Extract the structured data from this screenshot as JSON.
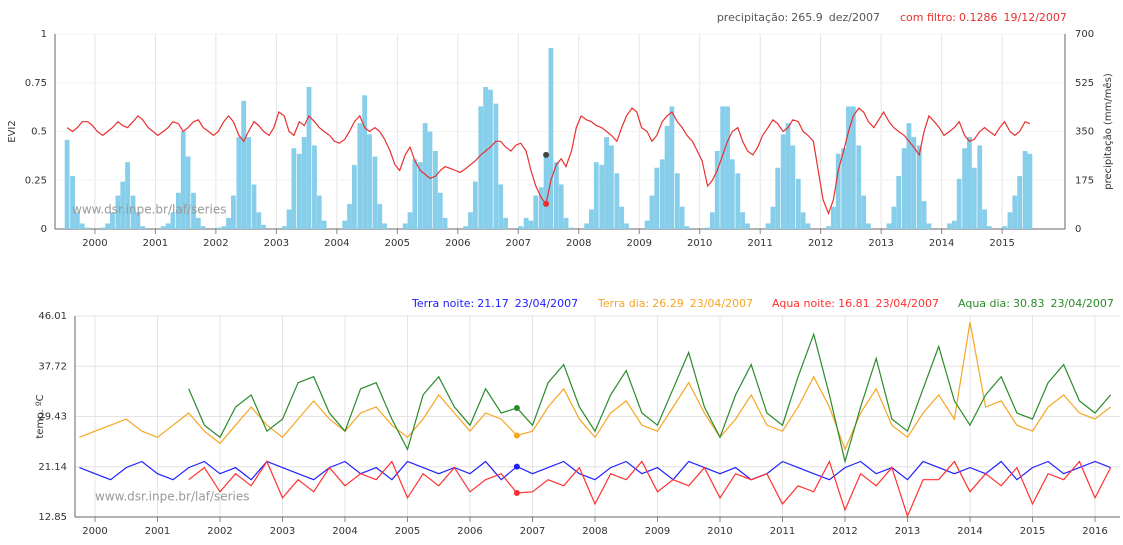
{
  "chart_data": [
    {
      "type": "combo",
      "ylabel": "EVI2",
      "y2label": "precipitação (mm/mês)",
      "watermark": "www.dsr.inpe.br/laf/series",
      "xlim": [
        1999.84,
        2016.54
      ],
      "ylim": [
        0,
        1
      ],
      "yticks": [
        0,
        0.25,
        0.5,
        0.75,
        1
      ],
      "y2lim": [
        0,
        700
      ],
      "y2ticks": [
        0,
        175,
        350,
        525,
        700
      ],
      "xticks": [
        {
          "value": 2000.5,
          "label": "2000"
        },
        {
          "value": 2001.5,
          "label": "2001"
        },
        {
          "value": 2002.5,
          "label": "2002"
        },
        {
          "value": 2003.5,
          "label": "2003"
        },
        {
          "value": 2004.5,
          "label": "2004"
        },
        {
          "value": 2005.5,
          "label": "2005"
        },
        {
          "value": 2006.5,
          "label": "2006"
        },
        {
          "value": 2007.5,
          "label": "2007"
        },
        {
          "value": 2008.5,
          "label": "2008"
        },
        {
          "value": 2009.5,
          "label": "2009"
        },
        {
          "value": 2010.5,
          "label": "2010"
        },
        {
          "value": 2011.5,
          "label": "2011"
        },
        {
          "value": 2012.5,
          "label": "2012"
        },
        {
          "value": 2013.5,
          "label": "2013"
        },
        {
          "value": 2014.5,
          "label": "2014"
        },
        {
          "value": 2015.5,
          "label": "2015"
        }
      ],
      "x": [
        2000.04,
        2000.13,
        2000.21,
        2000.29,
        2000.38,
        2000.46,
        2000.54,
        2000.63,
        2000.71,
        2000.79,
        2000.88,
        2000.96,
        2001.04,
        2001.13,
        2001.21,
        2001.29,
        2001.38,
        2001.46,
        2001.54,
        2001.63,
        2001.71,
        2001.79,
        2001.88,
        2001.96,
        2002.04,
        2002.13,
        2002.21,
        2002.29,
        2002.38,
        2002.46,
        2002.54,
        2002.63,
        2002.71,
        2002.79,
        2002.88,
        2002.96,
        2003.04,
        2003.13,
        2003.21,
        2003.29,
        2003.38,
        2003.46,
        2003.54,
        2003.63,
        2003.71,
        2003.79,
        2003.88,
        2003.96,
        2004.04,
        2004.13,
        2004.21,
        2004.29,
        2004.38,
        2004.46,
        2004.54,
        2004.63,
        2004.71,
        2004.79,
        2004.88,
        2004.96,
        2005.04,
        2005.13,
        2005.21,
        2005.29,
        2005.38,
        2005.46,
        2005.54,
        2005.63,
        2005.71,
        2005.79,
        2005.88,
        2005.96,
        2006.04,
        2006.13,
        2006.21,
        2006.29,
        2006.38,
        2006.46,
        2006.54,
        2006.63,
        2006.71,
        2006.79,
        2006.88,
        2006.96,
        2007.04,
        2007.13,
        2007.21,
        2007.29,
        2007.38,
        2007.46,
        2007.54,
        2007.63,
        2007.71,
        2007.79,
        2007.88,
        2007.96,
        2008.04,
        2008.13,
        2008.21,
        2008.29,
        2008.38,
        2008.46,
        2008.54,
        2008.63,
        2008.71,
        2008.79,
        2008.88,
        2008.96,
        2009.04,
        2009.13,
        2009.21,
        2009.29,
        2009.38,
        2009.46,
        2009.54,
        2009.63,
        2009.71,
        2009.79,
        2009.88,
        2009.96,
        2010.04,
        2010.13,
        2010.21,
        2010.29,
        2010.38,
        2010.46,
        2010.54,
        2010.63,
        2010.71,
        2010.79,
        2010.88,
        2010.96,
        2011.04,
        2011.13,
        2011.21,
        2011.29,
        2011.38,
        2011.46,
        2011.54,
        2011.63,
        2011.71,
        2011.79,
        2011.88,
        2011.96,
        2012.04,
        2012.13,
        2012.21,
        2012.29,
        2012.38,
        2012.46,
        2012.54,
        2012.63,
        2012.71,
        2012.79,
        2012.88,
        2012.96,
        2013.04,
        2013.13,
        2013.21,
        2013.29,
        2013.38,
        2013.46,
        2013.54,
        2013.63,
        2013.71,
        2013.79,
        2013.88,
        2013.96,
        2014.04,
        2014.13,
        2014.21,
        2014.29,
        2014.38,
        2014.46,
        2014.54,
        2014.63,
        2014.71,
        2014.79,
        2014.88,
        2014.96,
        2015.04,
        2015.13,
        2015.21,
        2015.29,
        2015.38,
        2015.46,
        2015.54,
        2015.63,
        2015.71,
        2015.79,
        2015.88,
        2015.96
      ],
      "series": [
        {
          "type": "bar",
          "axis": "y2",
          "color": "#87ceeb",
          "values": [
            320,
            190,
            60,
            20,
            5,
            0,
            0,
            5,
            20,
            60,
            120,
            170,
            240,
            120,
            60,
            10,
            0,
            0,
            0,
            10,
            20,
            60,
            130,
            350,
            260,
            130,
            40,
            10,
            0,
            0,
            5,
            10,
            40,
            120,
            330,
            460,
            330,
            160,
            60,
            15,
            0,
            0,
            0,
            10,
            70,
            290,
            270,
            330,
            510,
            300,
            120,
            30,
            0,
            0,
            0,
            30,
            90,
            230,
            380,
            480,
            340,
            260,
            90,
            20,
            0,
            0,
            0,
            20,
            60,
            250,
            240,
            380,
            350,
            280,
            130,
            40,
            0,
            0,
            0,
            10,
            60,
            170,
            440,
            510,
            500,
            450,
            160,
            40,
            0,
            0,
            10,
            40,
            30,
            120,
            150,
            265.9,
            650,
            240,
            160,
            40,
            5,
            0,
            0,
            20,
            70,
            240,
            230,
            330,
            300,
            200,
            80,
            20,
            0,
            0,
            0,
            30,
            120,
            220,
            250,
            370,
            440,
            200,
            80,
            10,
            0,
            0,
            0,
            5,
            60,
            280,
            440,
            440,
            250,
            200,
            60,
            20,
            0,
            0,
            0,
            20,
            80,
            220,
            340,
            380,
            300,
            180,
            60,
            20,
            0,
            0,
            0,
            10,
            80,
            270,
            290,
            440,
            440,
            300,
            120,
            20,
            0,
            0,
            0,
            20,
            80,
            190,
            290,
            380,
            330,
            300,
            100,
            20,
            0,
            0,
            0,
            20,
            30,
            180,
            290,
            330,
            220,
            300,
            70,
            10,
            0,
            0,
            10,
            60,
            120,
            190,
            280,
            270
          ]
        },
        {
          "type": "line",
          "axis": "y",
          "color": "#e83030",
          "values": [
            0.52,
            0.5,
            0.52,
            0.55,
            0.55,
            0.53,
            0.5,
            0.48,
            0.5,
            0.52,
            0.55,
            0.53,
            0.52,
            0.55,
            0.58,
            0.56,
            0.52,
            0.5,
            0.48,
            0.5,
            0.52,
            0.55,
            0.54,
            0.5,
            0.52,
            0.55,
            0.56,
            0.52,
            0.5,
            0.48,
            0.5,
            0.55,
            0.58,
            0.55,
            0.48,
            0.45,
            0.5,
            0.55,
            0.53,
            0.5,
            0.48,
            0.52,
            0.6,
            0.58,
            0.5,
            0.48,
            0.55,
            0.53,
            0.58,
            0.55,
            0.52,
            0.5,
            0.48,
            0.45,
            0.44,
            0.46,
            0.5,
            0.55,
            0.58,
            0.52,
            0.5,
            0.52,
            0.5,
            0.46,
            0.4,
            0.33,
            0.3,
            0.38,
            0.42,
            0.35,
            0.3,
            0.28,
            0.26,
            0.27,
            0.3,
            0.32,
            0.31,
            0.3,
            0.29,
            0.31,
            0.33,
            0.35,
            0.38,
            0.4,
            0.42,
            0.45,
            0.45,
            0.42,
            0.4,
            0.43,
            0.44,
            0.4,
            0.3,
            0.22,
            0.16,
            0.1286,
            0.25,
            0.33,
            0.36,
            0.32,
            0.4,
            0.52,
            0.58,
            0.56,
            0.55,
            0.53,
            0.52,
            0.5,
            0.48,
            0.45,
            0.52,
            0.58,
            0.62,
            0.6,
            0.52,
            0.5,
            0.45,
            0.48,
            0.55,
            0.58,
            0.6,
            0.55,
            0.52,
            0.48,
            0.45,
            0.4,
            0.35,
            0.22,
            0.25,
            0.3,
            0.38,
            0.45,
            0.5,
            0.52,
            0.45,
            0.4,
            0.38,
            0.42,
            0.48,
            0.52,
            0.56,
            0.54,
            0.5,
            0.52,
            0.56,
            0.55,
            0.5,
            0.48,
            0.45,
            0.3,
            0.15,
            0.08,
            0.15,
            0.3,
            0.4,
            0.5,
            0.58,
            0.62,
            0.6,
            0.55,
            0.52,
            0.56,
            0.6,
            0.55,
            0.52,
            0.5,
            0.48,
            0.45,
            0.42,
            0.38,
            0.5,
            0.58,
            0.55,
            0.52,
            0.48,
            0.5,
            0.52,
            0.55,
            0.48,
            0.45,
            0.46,
            0.5,
            0.52,
            0.5,
            0.48,
            0.52,
            0.55,
            0.5,
            0.48,
            0.5,
            0.55,
            0.54
          ]
        }
      ],
      "readouts": [
        {
          "label": "precipitação:",
          "value": 265.9,
          "date": "dez/2007",
          "color": "#555555"
        },
        {
          "label": "com filtro:",
          "value": 0.1286,
          "date": "19/12/2007",
          "color": "#e83030"
        }
      ]
    },
    {
      "type": "line",
      "ylabel": "temp. ºC",
      "watermark": "www.dsr.inpe.br/laf/series",
      "xlim": [
        2000.18,
        2016.9
      ],
      "ylim": [
        12.85,
        46.01
      ],
      "yticks": [
        12.85,
        21.14,
        29.43,
        37.72,
        46.01
      ],
      "xticks": [
        {
          "value": 2000.5,
          "label": "2000"
        },
        {
          "value": 2001.5,
          "label": "2001"
        },
        {
          "value": 2002.5,
          "label": "2002"
        },
        {
          "value": 2003.5,
          "label": "2003"
        },
        {
          "value": 2004.5,
          "label": "2004"
        },
        {
          "value": 2005.5,
          "label": "2005"
        },
        {
          "value": 2006.5,
          "label": "2006"
        },
        {
          "value": 2007.5,
          "label": "2007"
        },
        {
          "value": 2008.5,
          "label": "2008"
        },
        {
          "value": 2009.5,
          "label": "2009"
        },
        {
          "value": 2010.5,
          "label": "2010"
        },
        {
          "value": 2011.5,
          "label": "2011"
        },
        {
          "value": 2012.5,
          "label": "2012"
        },
        {
          "value": 2013.5,
          "label": "2013"
        },
        {
          "value": 2014.5,
          "label": "2014"
        },
        {
          "value": 2015.5,
          "label": "2015"
        },
        {
          "value": 2016.5,
          "label": "2016"
        }
      ],
      "x": [
        2000.25,
        2000.5,
        2000.75,
        2001,
        2001.25,
        2001.5,
        2001.75,
        2002,
        2002.25,
        2002.5,
        2002.75,
        2003,
        2003.25,
        2003.5,
        2003.75,
        2004,
        2004.25,
        2004.5,
        2004.75,
        2005,
        2005.25,
        2005.5,
        2005.75,
        2006,
        2006.25,
        2006.5,
        2006.75,
        2007,
        2007.25,
        2007.5,
        2007.75,
        2008,
        2008.25,
        2008.5,
        2008.75,
        2009,
        2009.25,
        2009.5,
        2009.75,
        2010,
        2010.25,
        2010.5,
        2010.75,
        2011,
        2011.25,
        2011.5,
        2011.75,
        2012,
        2012.25,
        2012.5,
        2012.75,
        2013,
        2013.25,
        2013.5,
        2013.75,
        2014,
        2014.25,
        2014.5,
        2014.75,
        2015,
        2015.25,
        2015.5,
        2015.75,
        2016,
        2016.25,
        2016.5,
        2016.75
      ],
      "series": [
        {
          "color": "#2020ff",
          "values": [
            21,
            20,
            19,
            21,
            22,
            20,
            19,
            21,
            22,
            20,
            21,
            19,
            22,
            21,
            20,
            19,
            21,
            22,
            20,
            21,
            19,
            22,
            21,
            20,
            21,
            20,
            22,
            19,
            21.17,
            20,
            21,
            22,
            20,
            19,
            21,
            22,
            20,
            21,
            19,
            22,
            21,
            20,
            21,
            19,
            20,
            22,
            21,
            20,
            19,
            21,
            22,
            20,
            21,
            19,
            22,
            21,
            20,
            21,
            20,
            22,
            19,
            21,
            22,
            20,
            21,
            22,
            21
          ]
        },
        {
          "color": "#f5a623",
          "values": [
            26,
            27,
            28,
            29,
            27,
            26,
            28,
            30,
            27,
            25,
            28,
            31,
            28,
            26,
            29,
            32,
            29,
            27,
            30,
            31,
            28,
            26,
            29,
            33,
            30,
            27,
            30,
            29,
            26.29,
            27,
            31,
            34,
            29,
            26,
            30,
            32,
            28,
            27,
            31,
            35,
            30,
            26,
            29,
            33,
            28,
            27,
            31,
            36,
            31,
            24,
            30,
            34,
            28,
            26,
            30,
            33,
            29,
            45,
            31,
            32,
            28,
            27,
            31,
            33,
            30,
            29,
            31
          ]
        },
        {
          "color": "#ff3030",
          "values": [
            null,
            null,
            null,
            null,
            null,
            null,
            null,
            19,
            21,
            17,
            20,
            18,
            22,
            16,
            19,
            17,
            21,
            18,
            20,
            19,
            22,
            16,
            20,
            18,
            21,
            17,
            19,
            20,
            16.81,
            17,
            19,
            18,
            21,
            15,
            20,
            19,
            22,
            17,
            19,
            18,
            21,
            16,
            20,
            19,
            20,
            15,
            18,
            17,
            22,
            14,
            20,
            18,
            21,
            13,
            19,
            19,
            22,
            17,
            20,
            18,
            21,
            15,
            20,
            19,
            22,
            16,
            21
          ]
        },
        {
          "color": "#2a8a2a",
          "values": [
            null,
            null,
            null,
            null,
            null,
            null,
            null,
            34,
            28,
            26,
            31,
            33,
            27,
            29,
            35,
            36,
            30,
            27,
            34,
            35,
            29,
            24,
            33,
            36,
            31,
            28,
            34,
            30,
            30.83,
            28,
            35,
            38,
            31,
            27,
            33,
            37,
            30,
            28,
            34,
            40,
            31,
            26,
            33,
            38,
            30,
            28,
            36,
            43,
            33,
            22,
            31,
            39,
            29,
            27,
            34,
            41,
            32,
            28,
            33,
            36,
            30,
            29,
            35,
            38,
            32,
            30,
            33
          ]
        }
      ],
      "readouts": [
        {
          "label": "Terra noite:",
          "value": 21.17,
          "date": "23/04/2007"
        },
        {
          "label": "Terra dia:",
          "value": 26.29,
          "date": "23/04/2007"
        },
        {
          "label": "Aqua noite:",
          "value": 16.81,
          "date": "23/04/2007"
        },
        {
          "label": "Aqua dia:",
          "value": 30.83,
          "date": "23/04/2007"
        }
      ]
    }
  ]
}
